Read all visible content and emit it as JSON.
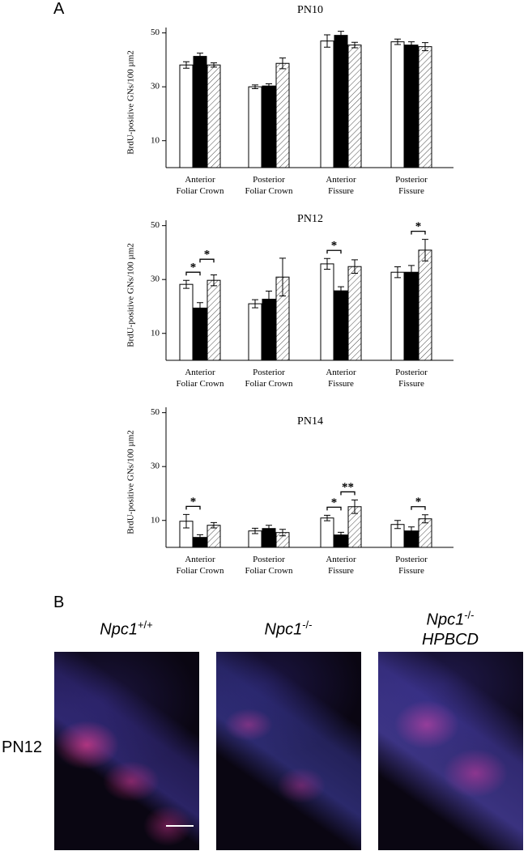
{
  "charts": [
    {
      "type": "bar",
      "title": "PN10",
      "y_label": "BrdU-positive GNs/100 µm2",
      "categories": [
        "Anterior\nFoliar Crown",
        "Posterior\nFoliar Crown",
        "Anterior\nFissure",
        "Posterior\nFissure"
      ],
      "series": [
        {
          "color": "#ffffff",
          "values": [
            38.1,
            30,
            47,
            46.7
          ],
          "errors": [
            1.2,
            0.7,
            2.3,
            1
          ]
        },
        {
          "color": "#000000",
          "values": [
            41.3,
            30.3,
            49.1,
            45.5
          ],
          "errors": [
            1.2,
            0.8,
            1.5,
            1.2
          ]
        },
        {
          "color": "#ffffff",
          "hatch": true,
          "values": [
            38.1,
            38.7,
            45.5,
            44.9
          ],
          "errors": [
            0.8,
            2,
            1,
            1.5
          ]
        }
      ],
      "ylim": [
        0,
        52
      ],
      "yticks": [
        10,
        30,
        50
      ],
      "annotations": []
    },
    {
      "type": "bar",
      "title": "PN12",
      "y_label": "BrdU-positive GNs/100 µm2",
      "categories": [
        "Anterior\nFoliar Crown",
        "Posterior\nFoliar Crown",
        "Anterior\nFissure",
        "Posterior\nFissure"
      ],
      "series": [
        {
          "color": "#ffffff",
          "values": [
            28.2,
            21,
            35.8,
            32.7
          ],
          "errors": [
            1.5,
            1.5,
            2,
            2
          ]
        },
        {
          "color": "#000000",
          "values": [
            19.4,
            22.7,
            25.8,
            32.7
          ],
          "errors": [
            2,
            3,
            1.5,
            2.5
          ]
        },
        {
          "color": "#ffffff",
          "hatch": true,
          "values": [
            29.7,
            30.9,
            34.8,
            40.9
          ],
          "errors": [
            2,
            7,
            2.5,
            4
          ]
        }
      ],
      "ylim": [
        0,
        52
      ],
      "yticks": [
        10,
        30,
        50
      ],
      "annotations": [
        {
          "text": "*",
          "category": 0,
          "from": 0,
          "to": 1
        },
        {
          "text": "*",
          "category": 0,
          "from": 1,
          "to": 2
        },
        {
          "text": "*",
          "category": 2,
          "from": 0,
          "to": 1
        },
        {
          "text": "*",
          "category": 3,
          "from": 1,
          "to": 2
        }
      ]
    },
    {
      "type": "bar",
      "title": "PN14",
      "y_label": "BrdU-positive GNs/100 µm2",
      "categories": [
        "Anterior\nFoliar Crown",
        "Posterior\nFoliar Crown",
        "Anterior\nFissure",
        "Posterior\nFissure"
      ],
      "series": [
        {
          "color": "#ffffff",
          "values": [
            9.7,
            6.1,
            10.9,
            8.5
          ],
          "errors": [
            2.5,
            1,
            1,
            1.5
          ]
        },
        {
          "color": "#000000",
          "values": [
            3.7,
            7,
            4.6,
            6.1
          ],
          "errors": [
            1,
            1.2,
            1,
            1.5
          ]
        },
        {
          "color": "#ffffff",
          "hatch": true,
          "values": [
            8.2,
            5.5,
            15.1,
            10.6
          ],
          "errors": [
            1,
            1.2,
            2.5,
            1.5
          ]
        }
      ],
      "ylim": [
        0,
        52
      ],
      "yticks": [
        10,
        30,
        50
      ],
      "annotations": [
        {
          "text": "*",
          "category": 0,
          "from": 0,
          "to": 1
        },
        {
          "text": "*",
          "category": 2,
          "from": 0,
          "to": 1
        },
        {
          "text": "**",
          "category": 2,
          "from": 1,
          "to": 2
        },
        {
          "text": "*",
          "category": 3,
          "from": 1,
          "to": 2
        }
      ]
    }
  ],
  "panels": {
    "a": "A",
    "b": "B"
  },
  "images": {
    "row_label": "PN12",
    "columns": [
      {
        "gene": "Npc1",
        "genotype": "+/+"
      },
      {
        "gene": "Npc1",
        "genotype": "-/-"
      },
      {
        "gene": "Npc1",
        "genotype": "-/-",
        "treatment": "HPBCD"
      }
    ]
  }
}
